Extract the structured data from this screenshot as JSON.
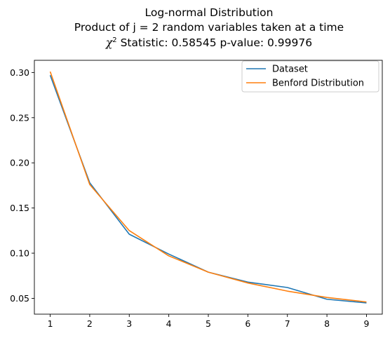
{
  "chart_data": {
    "type": "line",
    "title_lines": [
      "Log-normal Distribution",
      "Product of j = 2 random variables taken at a time"
    ],
    "stat_symbol": "χ",
    "stat_superscript": "2",
    "stat_text": " Statistic: 0.58545 p-value: 0.99976",
    "x": [
      1,
      2,
      3,
      4,
      5,
      6,
      7,
      8,
      9
    ],
    "series": [
      {
        "name": "Dataset",
        "color": "#1f77b4",
        "values": [
          0.297,
          0.178,
          0.121,
          0.099,
          0.079,
          0.068,
          0.062,
          0.049,
          0.045
        ]
      },
      {
        "name": "Benford Distribution",
        "color": "#ff7f0e",
        "values": [
          0.301,
          0.176,
          0.125,
          0.097,
          0.079,
          0.067,
          0.058,
          0.051,
          0.046
        ]
      }
    ],
    "xticks": [
      "1",
      "2",
      "3",
      "4",
      "5",
      "6",
      "7",
      "8",
      "9"
    ],
    "yticks": [
      "0.05",
      "0.10",
      "0.15",
      "0.20",
      "0.25",
      "0.30"
    ],
    "xlim": [
      0.6,
      9.4
    ],
    "ylim": [
      0.0325,
      0.3135
    ],
    "xlabel": "",
    "ylabel": "",
    "grid": false,
    "legend_position": "top-right"
  }
}
